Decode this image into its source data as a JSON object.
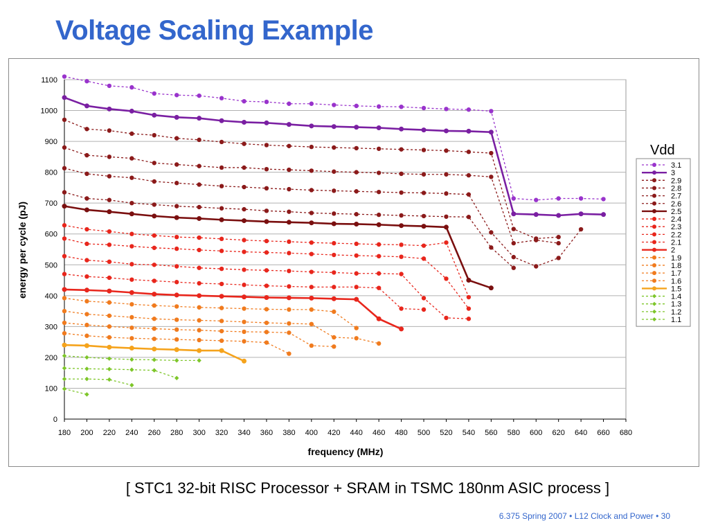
{
  "slide": {
    "title": "Voltage Scaling Example",
    "caption": "[ STC1 32-bit RISC Processor + SRAM in TSMC 180nm ASIC process ]",
    "footer": "6.375 Spring 2007 • L12 Clock and Power • 30"
  },
  "chart_data": {
    "type": "line",
    "xlabel": "frequency (MHz)",
    "ylabel": "energy per cycle (pJ)",
    "xlim": [
      180,
      680
    ],
    "ylim": [
      0,
      1100
    ],
    "xticks": [
      180,
      200,
      220,
      240,
      260,
      280,
      300,
      320,
      340,
      360,
      380,
      400,
      420,
      440,
      460,
      480,
      500,
      520,
      540,
      560,
      580,
      600,
      620,
      640,
      660,
      680
    ],
    "yticks": [
      0,
      100,
      200,
      300,
      400,
      500,
      600,
      700,
      800,
      900,
      1000,
      1100
    ],
    "grid": "horizontal",
    "legend_title": "Vdd",
    "legend_position": "right",
    "series": [
      {
        "name": "3.1",
        "color": "#9933cc",
        "style": "dotted",
        "marker": "circle",
        "x": [
          180,
          200,
          220,
          240,
          260,
          280,
          300,
          320,
          340,
          360,
          380,
          400,
          420,
          440,
          460,
          480,
          500,
          520,
          540,
          560,
          580,
          600,
          620,
          640,
          660
        ],
        "y": [
          1110,
          1095,
          1080,
          1075,
          1055,
          1050,
          1048,
          1040,
          1030,
          1028,
          1022,
          1022,
          1018,
          1015,
          1013,
          1012,
          1008,
          1005,
          1003,
          998,
          715,
          710,
          715,
          715,
          713
        ]
      },
      {
        "name": "3",
        "color": "#7a1fa2",
        "style": "solid",
        "marker": "circle",
        "x": [
          180,
          200,
          220,
          240,
          260,
          280,
          300,
          320,
          340,
          360,
          380,
          400,
          420,
          440,
          460,
          480,
          500,
          520,
          540,
          560,
          580,
          600,
          620,
          640,
          660
        ],
        "y": [
          1042,
          1015,
          1005,
          998,
          985,
          978,
          975,
          967,
          962,
          960,
          955,
          950,
          948,
          946,
          944,
          940,
          937,
          934,
          933,
          930,
          665,
          663,
          660,
          665,
          663
        ]
      },
      {
        "name": "2.9",
        "color": "#8b1a1a",
        "style": "dotted",
        "marker": "circle",
        "x": [
          180,
          200,
          220,
          240,
          260,
          280,
          300,
          320,
          340,
          360,
          380,
          400,
          420,
          440,
          460,
          480,
          500,
          520,
          540,
          560,
          580,
          600,
          620
        ],
        "y": [
          970,
          940,
          935,
          925,
          920,
          910,
          905,
          898,
          892,
          888,
          885,
          882,
          880,
          878,
          876,
          874,
          872,
          870,
          866,
          862,
          616,
          585,
          590
        ]
      },
      {
        "name": "2.8",
        "color": "#8b1a1a",
        "style": "dotted",
        "marker": "circle",
        "x": [
          180,
          200,
          220,
          240,
          260,
          280,
          300,
          320,
          340,
          360,
          380,
          400,
          420,
          440,
          460,
          480,
          500,
          520,
          540,
          560,
          580,
          600,
          620
        ],
        "y": [
          880,
          855,
          850,
          845,
          830,
          825,
          820,
          815,
          815,
          810,
          808,
          805,
          802,
          800,
          798,
          795,
          793,
          793,
          790,
          785,
          570,
          580,
          570
        ]
      },
      {
        "name": "2.7",
        "color": "#8b1a1a",
        "style": "dotted",
        "marker": "circle",
        "x": [
          180,
          200,
          220,
          240,
          260,
          280,
          300,
          320,
          340,
          360,
          380,
          400,
          420,
          440,
          460,
          480,
          500,
          520,
          540,
          560,
          580,
          600,
          620,
          640
        ],
        "y": [
          813,
          795,
          787,
          782,
          770,
          765,
          760,
          755,
          752,
          748,
          745,
          742,
          740,
          738,
          736,
          734,
          733,
          731,
          728,
          605,
          525,
          495,
          522,
          615
        ]
      },
      {
        "name": "2.6",
        "color": "#8b1a1a",
        "style": "dotted",
        "marker": "circle",
        "x": [
          180,
          200,
          220,
          240,
          260,
          280,
          300,
          320,
          340,
          360,
          380,
          400,
          420,
          440,
          460,
          480,
          500,
          520,
          540,
          560,
          580
        ],
        "y": [
          735,
          715,
          710,
          700,
          695,
          690,
          687,
          683,
          680,
          675,
          672,
          668,
          666,
          664,
          662,
          660,
          658,
          656,
          655,
          556,
          490
        ]
      },
      {
        "name": "2.5",
        "color": "#7a0f0f",
        "style": "solid",
        "marker": "circle",
        "x": [
          180,
          200,
          220,
          240,
          260,
          280,
          300,
          320,
          340,
          360,
          380,
          400,
          420,
          440,
          460,
          480,
          500,
          520,
          540,
          560
        ],
        "y": [
          690,
          678,
          672,
          665,
          658,
          653,
          650,
          646,
          643,
          640,
          638,
          636,
          633,
          632,
          630,
          627,
          625,
          622,
          450,
          425
        ]
      },
      {
        "name": "2.4",
        "color": "#e8261c",
        "style": "dotted",
        "marker": "circle",
        "x": [
          180,
          200,
          220,
          240,
          260,
          280,
          300,
          320,
          340,
          360,
          380,
          400,
          420,
          440,
          460,
          480,
          500,
          520,
          540
        ],
        "y": [
          628,
          615,
          608,
          600,
          595,
          590,
          588,
          584,
          580,
          577,
          575,
          572,
          570,
          568,
          566,
          565,
          562,
          572,
          395
        ]
      },
      {
        "name": "2.3",
        "color": "#e8261c",
        "style": "dotted",
        "marker": "circle",
        "x": [
          180,
          200,
          220,
          240,
          260,
          280,
          300,
          320,
          340,
          360,
          380,
          400,
          420,
          440,
          460,
          480,
          500,
          520,
          540
        ],
        "y": [
          585,
          568,
          565,
          560,
          555,
          552,
          548,
          545,
          542,
          540,
          538,
          535,
          532,
          530,
          528,
          526,
          520,
          455,
          358
        ]
      },
      {
        "name": "2.2",
        "color": "#e8261c",
        "style": "dotted",
        "marker": "circle",
        "x": [
          180,
          200,
          220,
          240,
          260,
          280,
          300,
          320,
          340,
          360,
          380,
          400,
          420,
          440,
          460,
          480,
          500,
          520,
          540
        ],
        "y": [
          528,
          515,
          510,
          502,
          500,
          495,
          490,
          487,
          484,
          482,
          480,
          477,
          475,
          472,
          472,
          470,
          392,
          328,
          325
        ]
      },
      {
        "name": "2.1",
        "color": "#e8261c",
        "style": "dotted",
        "marker": "circle",
        "x": [
          180,
          200,
          220,
          240,
          260,
          280,
          300,
          320,
          340,
          360,
          380,
          400,
          420,
          440,
          460,
          480,
          500
        ],
        "y": [
          470,
          462,
          458,
          452,
          448,
          444,
          440,
          438,
          435,
          432,
          430,
          428,
          428,
          428,
          425,
          358,
          355
        ]
      },
      {
        "name": "2",
        "color": "#e8261c",
        "style": "solid",
        "marker": "circle",
        "x": [
          180,
          200,
          220,
          240,
          260,
          280,
          300,
          320,
          340,
          360,
          380,
          400,
          420,
          440,
          460,
          480
        ],
        "y": [
          420,
          418,
          415,
          410,
          405,
          402,
          400,
          398,
          396,
          394,
          393,
          392,
          390,
          388,
          325,
          292
        ]
      },
      {
        "name": "1.9",
        "color": "#f07b1e",
        "style": "dotted",
        "marker": "circle",
        "x": [
          180,
          200,
          220,
          240,
          260,
          280,
          300,
          320,
          340,
          360,
          380,
          400,
          420,
          440
        ],
        "y": [
          392,
          382,
          378,
          372,
          368,
          365,
          362,
          360,
          358,
          356,
          355,
          355,
          348,
          295
        ]
      },
      {
        "name": "1.8",
        "color": "#f07b1e",
        "style": "dotted",
        "marker": "circle",
        "x": [
          180,
          200,
          220,
          240,
          260,
          280,
          300,
          320,
          340,
          360,
          380,
          400,
          420,
          440,
          460
        ],
        "y": [
          350,
          340,
          335,
          330,
          325,
          322,
          320,
          318,
          315,
          312,
          310,
          308,
          265,
          262,
          245
        ]
      },
      {
        "name": "1.7",
        "color": "#f07b1e",
        "style": "dotted",
        "marker": "circle",
        "x": [
          180,
          200,
          220,
          240,
          260,
          280,
          300,
          320,
          340,
          360,
          380,
          400,
          420
        ],
        "y": [
          312,
          305,
          300,
          296,
          293,
          290,
          288,
          285,
          283,
          282,
          280,
          238,
          235
        ]
      },
      {
        "name": "1.6",
        "color": "#f07b1e",
        "style": "dotted",
        "marker": "circle",
        "x": [
          180,
          200,
          220,
          240,
          260,
          280,
          300,
          320,
          340,
          360,
          380
        ],
        "y": [
          278,
          270,
          265,
          262,
          260,
          258,
          256,
          254,
          252,
          248,
          212
        ]
      },
      {
        "name": "1.5",
        "color": "#f5a31c",
        "style": "solid",
        "marker": "circle",
        "x": [
          180,
          200,
          220,
          240,
          260,
          280,
          300,
          320,
          340
        ],
        "y": [
          240,
          238,
          233,
          230,
          227,
          225,
          222,
          222,
          188
        ]
      },
      {
        "name": "1.4",
        "color": "#7ec62a",
        "style": "dotted",
        "marker": "diamond",
        "x": [
          180,
          200,
          220,
          240,
          260,
          280,
          300
        ],
        "y": [
          205,
          200,
          196,
          193,
          192,
          190,
          190
        ]
      },
      {
        "name": "1.3",
        "color": "#7ec62a",
        "style": "dotted",
        "marker": "diamond",
        "x": [
          180,
          200,
          220,
          240,
          260,
          280
        ],
        "y": [
          165,
          163,
          162,
          160,
          158,
          133
        ]
      },
      {
        "name": "1.2",
        "color": "#7ec62a",
        "style": "dotted",
        "marker": "diamond",
        "x": [
          180,
          200,
          220,
          240
        ],
        "y": [
          130,
          130,
          128,
          110
        ]
      },
      {
        "name": "1.1",
        "color": "#7ec62a",
        "style": "dotted",
        "marker": "diamond",
        "x": [
          180,
          200
        ],
        "y": [
          98,
          80
        ]
      }
    ]
  }
}
